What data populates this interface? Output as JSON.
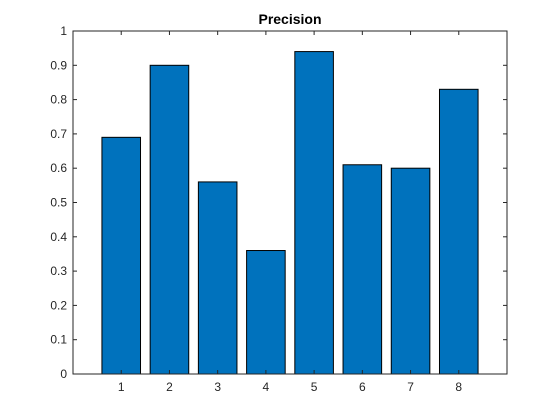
{
  "chart_data": {
    "type": "bar",
    "title": "Precision",
    "xlabel": "",
    "ylabel": "",
    "categories": [
      "1",
      "2",
      "3",
      "4",
      "5",
      "6",
      "7",
      "8"
    ],
    "values": [
      0.69,
      0.9,
      0.56,
      0.36,
      0.94,
      0.61,
      0.6,
      0.83
    ],
    "xlim": [
      0,
      9
    ],
    "ylim": [
      0,
      1
    ],
    "yticks": [
      "0",
      "0.1",
      "0.2",
      "0.3",
      "0.4",
      "0.5",
      "0.6",
      "0.7",
      "0.8",
      "0.9",
      "1"
    ],
    "grid": false,
    "bar_color": "#0072BD",
    "bar_edge_color": "#000000",
    "axes_color": "#262626"
  }
}
